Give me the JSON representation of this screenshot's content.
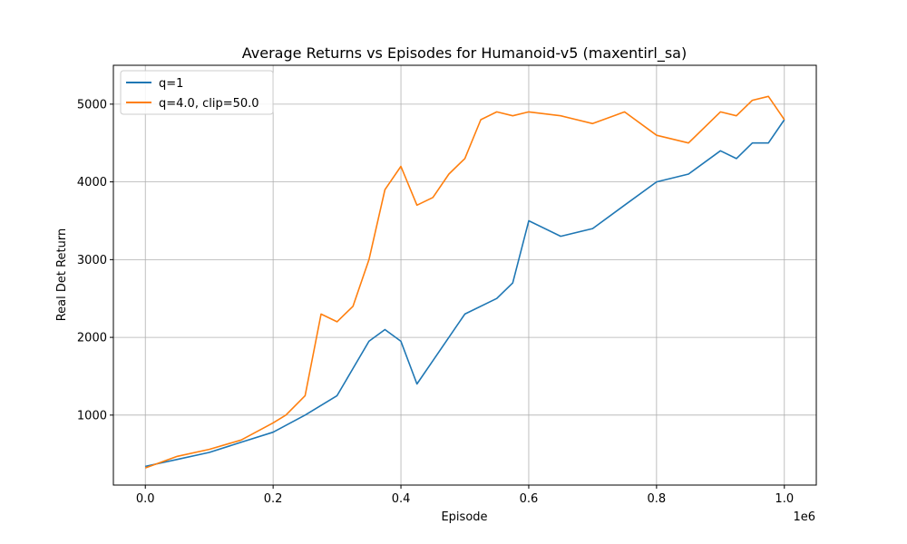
{
  "chart_data": {
    "type": "line",
    "title": "Average Returns vs Episodes for Humanoid-v5 (maxentirl_sa)",
    "xlabel": "Episode",
    "ylabel": "Real Det Return",
    "x_scale_label": "1e6",
    "xlim": [
      -50000,
      1050000
    ],
    "ylim": [
      100,
      5500
    ],
    "xticks": [
      0,
      200000,
      400000,
      600000,
      800000,
      1000000
    ],
    "xtick_labels": [
      "0.0",
      "0.2",
      "0.4",
      "0.6",
      "0.8",
      "1.0"
    ],
    "yticks": [
      1000,
      2000,
      3000,
      4000,
      5000
    ],
    "ytick_labels": [
      "1000",
      "2000",
      "3000",
      "4000",
      "5000"
    ],
    "grid": true,
    "legend_position": "top-left",
    "series": [
      {
        "name": "q=1",
        "color": "#1f77b4",
        "x": [
          0,
          50000,
          100000,
          150000,
          200000,
          250000,
          300000,
          325000,
          350000,
          375000,
          400000,
          425000,
          450000,
          500000,
          550000,
          575000,
          600000,
          650000,
          700000,
          750000,
          800000,
          850000,
          900000,
          925000,
          950000,
          975000,
          1000000
        ],
        "y": [
          340,
          430,
          520,
          650,
          780,
          1000,
          1250,
          1600,
          1950,
          2100,
          1950,
          1400,
          1700,
          2300,
          2500,
          2700,
          3500,
          3300,
          3400,
          3700,
          4000,
          4100,
          4400,
          4300,
          4500,
          4500,
          4800
        ]
      },
      {
        "name": "q=4.0, clip=50.0",
        "color": "#ff7f0e",
        "x": [
          0,
          50000,
          100000,
          150000,
          200000,
          220000,
          250000,
          275000,
          300000,
          325000,
          350000,
          375000,
          400000,
          425000,
          450000,
          475000,
          500000,
          525000,
          550000,
          575000,
          600000,
          650000,
          700000,
          750000,
          800000,
          850000,
          900000,
          925000,
          950000,
          975000,
          1000000
        ],
        "y": [
          320,
          470,
          560,
          680,
          900,
          1000,
          1250,
          2300,
          2200,
          2400,
          3000,
          3900,
          4200,
          3700,
          3800,
          4100,
          4300,
          4800,
          4900,
          4850,
          4900,
          4850,
          4750,
          4900,
          4600,
          4500,
          4900,
          4850,
          5050,
          5100,
          4800
        ]
      }
    ]
  }
}
